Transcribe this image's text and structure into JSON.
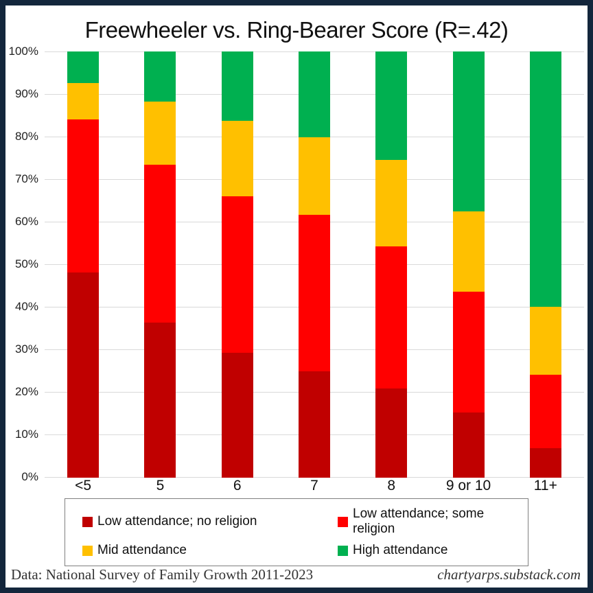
{
  "title": "Freewheeler vs. Ring-Bearer Score (R=.42)",
  "chart_data": {
    "type": "bar",
    "subtype": "stacked-100-percent",
    "categories": [
      "<5",
      "5",
      "6",
      "7",
      "8",
      "9 or 10",
      "11+"
    ],
    "series": [
      {
        "name": "Low attendance; no religion",
        "color": "#C00000",
        "values": [
          48.2,
          36.4,
          29.3,
          25.0,
          21.0,
          15.3,
          7.0
        ]
      },
      {
        "name": "Low attendance; some religion",
        "color": "#FF0000",
        "values": [
          35.8,
          37.1,
          36.7,
          36.7,
          33.2,
          28.4,
          17.2
        ]
      },
      {
        "name": "Mid attendance",
        "color": "#FFC000",
        "values": [
          8.6,
          14.7,
          17.7,
          18.1,
          20.3,
          18.8,
          15.9
        ]
      },
      {
        "name": "High attendance",
        "color": "#00B050",
        "values": [
          7.4,
          11.8,
          16.3,
          20.2,
          25.5,
          37.5,
          59.9
        ]
      }
    ],
    "title": "Freewheeler vs. Ring-Bearer Score (R=.42)",
    "xlabel": "",
    "ylabel": "",
    "ylim": [
      0,
      100
    ],
    "y_ticks": [
      "0%",
      "10%",
      "20%",
      "30%",
      "40%",
      "50%",
      "60%",
      "70%",
      "80%",
      "90%",
      "100%"
    ],
    "grid": "horizontal",
    "legend_position": "bottom-box"
  },
  "footer": {
    "left": "Data: National Survey of Family Growth 2011-2023",
    "right": "chartyarps.substack.com"
  },
  "colors": {
    "frame_border": "#13263C",
    "gridline": "#D9D9D9",
    "legend_border": "#7F7F7F",
    "dark_red": "#C00000",
    "red": "#FF0000",
    "yellow": "#FFC000",
    "green": "#00B050"
  }
}
